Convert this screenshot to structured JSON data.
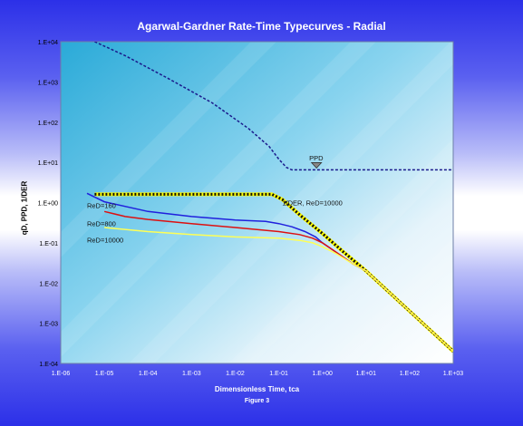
{
  "chart_data": {
    "type": "line",
    "title": "Agarwal-Gardner Rate-Time Typecurves - Radial",
    "xlabel": "Dimensionless Time, tca",
    "ylabel": "qD, PPD, 1/DER",
    "subtitle": "Figure 3",
    "x_scale": "log",
    "y_scale": "log",
    "xlim": [
      1e-06,
      1000
    ],
    "ylim": [
      0.0001,
      10000
    ],
    "x_tick_labels": [
      "1.E-06",
      "1.E-05",
      "1.E-04",
      "1.E-03",
      "1.E-02",
      "1.E-01",
      "1.E+00",
      "1.E+01",
      "1.E+02",
      "1.E+03"
    ],
    "y_tick_labels": [
      "1.E-04",
      "1.E-03",
      "1.E-02",
      "1.E-01",
      "1.E+00",
      "1.E+01",
      "1.E+02",
      "1.E+03",
      "1.E+04"
    ],
    "series": [
      {
        "name": "PPD",
        "style": "dotted",
        "color": "#1a1a8c",
        "x": [
          6e-06,
          3e-05,
          0.0003,
          0.003,
          0.02,
          0.06,
          0.1,
          0.15,
          0.2,
          0.5,
          1,
          10,
          100,
          1000
        ],
        "y": [
          10000,
          4500,
          1200,
          300,
          70,
          25,
          12,
          7.5,
          6.5,
          6.5,
          6.5,
          6.5,
          6.5,
          6.5
        ]
      },
      {
        "name": "1/DER, ReD=10000",
        "style": "yellow-black",
        "color": "#ffff00",
        "x": [
          6e-06,
          1e-05,
          0.0001,
          0.001,
          0.01,
          0.07,
          0.12,
          0.3,
          1,
          3,
          10,
          100,
          1000
        ],
        "y": [
          1.6,
          1.6,
          1.6,
          1.6,
          1.6,
          1.6,
          1.2,
          0.5,
          0.17,
          0.06,
          0.02,
          0.002,
          0.0002
        ]
      },
      {
        "name": "ReD=160",
        "style": "solid",
        "color": "#2020dd",
        "x": [
          4e-06,
          1e-05,
          0.0001,
          0.001,
          0.01,
          0.05,
          0.1,
          0.2,
          0.4,
          0.7,
          1,
          2,
          5,
          10,
          100,
          1000
        ],
        "y": [
          1.7,
          1.05,
          0.6,
          0.45,
          0.37,
          0.34,
          0.3,
          0.25,
          0.19,
          0.14,
          0.1,
          0.06,
          0.03,
          0.02,
          0.002,
          0.0002
        ]
      },
      {
        "name": "ReD=800",
        "style": "solid",
        "color": "#dd1010",
        "x": [
          1e-05,
          3e-05,
          0.0001,
          0.001,
          0.01,
          0.1,
          0.3,
          0.6,
          1,
          2,
          5,
          10,
          100,
          1000
        ],
        "y": [
          0.6,
          0.45,
          0.38,
          0.3,
          0.24,
          0.19,
          0.16,
          0.13,
          0.1,
          0.06,
          0.03,
          0.02,
          0.002,
          0.0002
        ]
      },
      {
        "name": "ReD=10000",
        "style": "solid",
        "color": "#ffff55",
        "x": [
          1e-05,
          0.0001,
          0.001,
          0.01,
          0.1,
          0.3,
          0.6,
          1,
          2,
          5,
          10,
          100,
          1000
        ],
        "y": [
          0.24,
          0.19,
          0.16,
          0.14,
          0.13,
          0.115,
          0.1,
          0.08,
          0.055,
          0.03,
          0.02,
          0.002,
          0.0002
        ]
      }
    ],
    "annotations": [
      {
        "text": "PPD",
        "x": 0.5,
        "y": 13
      },
      {
        "text": "1/DER, ReD=10000",
        "x": 0.12,
        "y": 1.0
      },
      {
        "text": "ReD=160",
        "x": 4e-06,
        "y": 0.85
      },
      {
        "text": "ReD=800",
        "x": 4e-06,
        "y": 0.3
      },
      {
        "text": "ReD=10000",
        "x": 4e-06,
        "y": 0.12
      }
    ],
    "grid": true,
    "legend": "none"
  }
}
